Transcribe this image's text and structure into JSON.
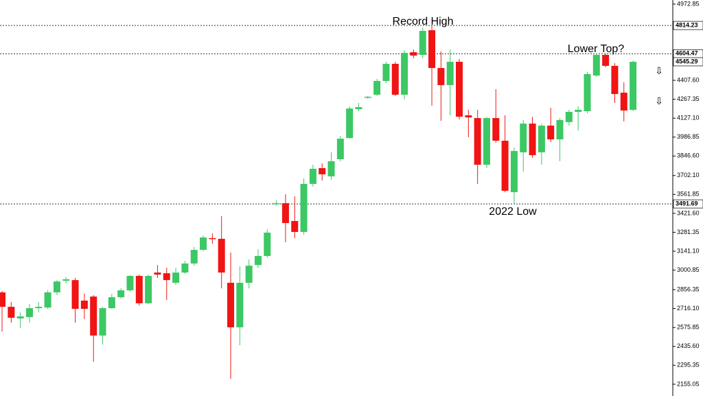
{
  "chart_data": {
    "type": "candlestick",
    "up_color": "#3cc864",
    "down_color": "#f01414",
    "categories": [
      null,
      null,
      null,
      null,
      null,
      null,
      null,
      null,
      null,
      null,
      null,
      null,
      null,
      null,
      null,
      null,
      null,
      null,
      null,
      null,
      null,
      null,
      null,
      null,
      null,
      null,
      null,
      null,
      null,
      null,
      null,
      null,
      null,
      null,
      null,
      null,
      null,
      null,
      null,
      null,
      null,
      null,
      null,
      null,
      null,
      null,
      null,
      null,
      null,
      null,
      null,
      null,
      null,
      null,
      null,
      null,
      null,
      null,
      null,
      null,
      null,
      null,
      null,
      null,
      null,
      null,
      null,
      null,
      null,
      null
    ],
    "open": [
      2836,
      2729,
      2643,
      2653,
      2719,
      2724,
      2836,
      2922,
      2927,
      2775,
      2805,
      2516,
      2719,
      2800,
      2851,
      2958,
      2755,
      2983,
      2978,
      2907,
      2983,
      3050,
      3151,
      3238,
      3233,
      2907,
      2577,
      2907,
      3039,
      3106,
      3492,
      3497,
      3365,
      3284,
      3640,
      3757,
      3696,
      3823,
      3980,
      4194,
      4281,
      4301,
      4403,
      4530,
      4301,
      4616,
      4596,
      4779,
      4499,
      4372,
      4545,
      4148,
      4128,
      3782,
      4128,
      3960,
      3579,
      3874,
      4087,
      3874,
      4072,
      3970,
      4098,
      4174,
      4179,
      4443,
      4596,
      4515,
      4316,
      4189
    ],
    "high": [
      2846,
      2765,
      2688,
      2750,
      2765,
      2851,
      2927,
      2948,
      2943,
      2826,
      2816,
      2729,
      2826,
      2866,
      2963,
      2968,
      2968,
      3039,
      3019,
      3019,
      3070,
      3172,
      3258,
      3273,
      3401,
      3131,
      3029,
      3080,
      3156,
      3304,
      3518,
      3563,
      3548,
      3680,
      3782,
      3792,
      3874,
      3996,
      4215,
      4240,
      4291,
      4418,
      4545,
      4545,
      4632,
      4637,
      4800,
      4815,
      4622,
      4637,
      4566,
      4189,
      4189,
      4138,
      4342,
      4148,
      3909,
      4113,
      4138,
      4087,
      4204,
      4128,
      4189,
      4215,
      4469,
      4606,
      4606,
      4535,
      4393,
      4555
    ],
    "low": [
      2546,
      2612,
      2571,
      2612,
      2688,
      2714,
      2816,
      2902,
      2612,
      2638,
      2322,
      2449,
      2714,
      2790,
      2841,
      2739,
      2750,
      2943,
      2780,
      2892,
      2973,
      3034,
      3141,
      3197,
      2866,
      2195,
      2444,
      2866,
      3019,
      3095,
      3477,
      3207,
      3238,
      3263,
      3619,
      3665,
      3670,
      3808,
      3975,
      4179,
      4270,
      4291,
      4388,
      4291,
      4265,
      4571,
      4571,
      4220,
      4108,
      4148,
      4118,
      3986,
      3640,
      3757,
      3945,
      3579,
      3492,
      3731,
      3833,
      3782,
      3950,
      3808,
      4072,
      4036,
      4164,
      4433,
      4504,
      4240,
      4103,
      4179
    ],
    "close": [
      2729,
      2648,
      2658,
      2719,
      2729,
      2836,
      2917,
      2933,
      2714,
      2714,
      2516,
      2719,
      2800,
      2851,
      2958,
      2755,
      2958,
      2968,
      2927,
      2983,
      3050,
      3151,
      3243,
      3233,
      2983,
      2577,
      2907,
      3034,
      3106,
      3279,
      3497,
      3350,
      3284,
      3640,
      3752,
      3711,
      3808,
      3975,
      4199,
      4209,
      4286,
      4403,
      4530,
      4301,
      4611,
      4591,
      4774,
      4499,
      4372,
      4545,
      4138,
      4133,
      3782,
      4128,
      3960,
      3589,
      3884,
      4087,
      3853,
      4072,
      3970,
      4113,
      4174,
      4189,
      4454,
      4596,
      4515,
      4306,
      4184,
      4545
    ],
    "ylim": [
      2068,
      5003
    ],
    "yticks": [
      4972.85,
      {
        "value": 4407.6,
        "label": "4407.60"
      },
      4267.35,
      {
        "value": 4127.1,
        "label": "4127.10"
      },
      3986.85,
      {
        "value": 3846.6,
        "label": "3846.60"
      },
      {
        "value": 3702.1,
        "label": "3702.10"
      },
      3561.85,
      {
        "value": 3421.6,
        "label": "3421.60"
      },
      3281.35,
      {
        "value": 3141.1,
        "label": "3141.10"
      },
      3000.85,
      2856.35,
      {
        "value": 2716.1,
        "label": "2716.10"
      },
      2575.85,
      {
        "value": 2435.6,
        "label": "2435.60"
      },
      2295.35,
      2155.05
    ],
    "price_levels": [
      4814.23,
      4604.47,
      3491.69
    ],
    "current_price": 4545.29,
    "annotations": [
      "Record High",
      "Lower Top?",
      "2022 Low"
    ]
  }
}
